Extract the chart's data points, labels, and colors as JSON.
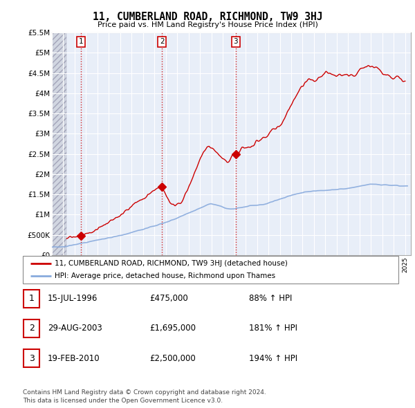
{
  "title": "11, CUMBERLAND ROAD, RICHMOND, TW9 3HJ",
  "subtitle": "Price paid vs. HM Land Registry's House Price Index (HPI)",
  "ylim": [
    0,
    5500000
  ],
  "yticks": [
    0,
    500000,
    1000000,
    1500000,
    2000000,
    2500000,
    3000000,
    3500000,
    4000000,
    4500000,
    5000000,
    5500000
  ],
  "ytick_labels": [
    "£0",
    "£500K",
    "£1M",
    "£1.5M",
    "£2M",
    "£2.5M",
    "£3M",
    "£3.5M",
    "£4M",
    "£4.5M",
    "£5M",
    "£5.5M"
  ],
  "xlim_start": 1994.0,
  "xlim_end": 2025.5,
  "hatch_end": 1995.3,
  "sale_dates": [
    1996.54,
    2003.66,
    2010.13
  ],
  "sale_prices": [
    475000,
    1695000,
    2500000
  ],
  "sale_labels": [
    "1",
    "2",
    "3"
  ],
  "legend_property": "11, CUMBERLAND ROAD, RICHMOND, TW9 3HJ (detached house)",
  "legend_hpi": "HPI: Average price, detached house, Richmond upon Thames",
  "property_color": "#cc0000",
  "hpi_color": "#88aadd",
  "chart_bg": "#e8eef8",
  "footer": "Contains HM Land Registry data © Crown copyright and database right 2024.\nThis data is licensed under the Open Government Licence v3.0.",
  "table_rows": [
    {
      "num": "1",
      "date": "15-JUL-1996",
      "price": "£475,000",
      "hpi": "88% ↑ HPI"
    },
    {
      "num": "2",
      "date": "29-AUG-2003",
      "price": "£1,695,000",
      "hpi": "181% ↑ HPI"
    },
    {
      "num": "3",
      "date": "19-FEB-2010",
      "price": "£2,500,000",
      "hpi": "194% ↑ HPI"
    }
  ]
}
